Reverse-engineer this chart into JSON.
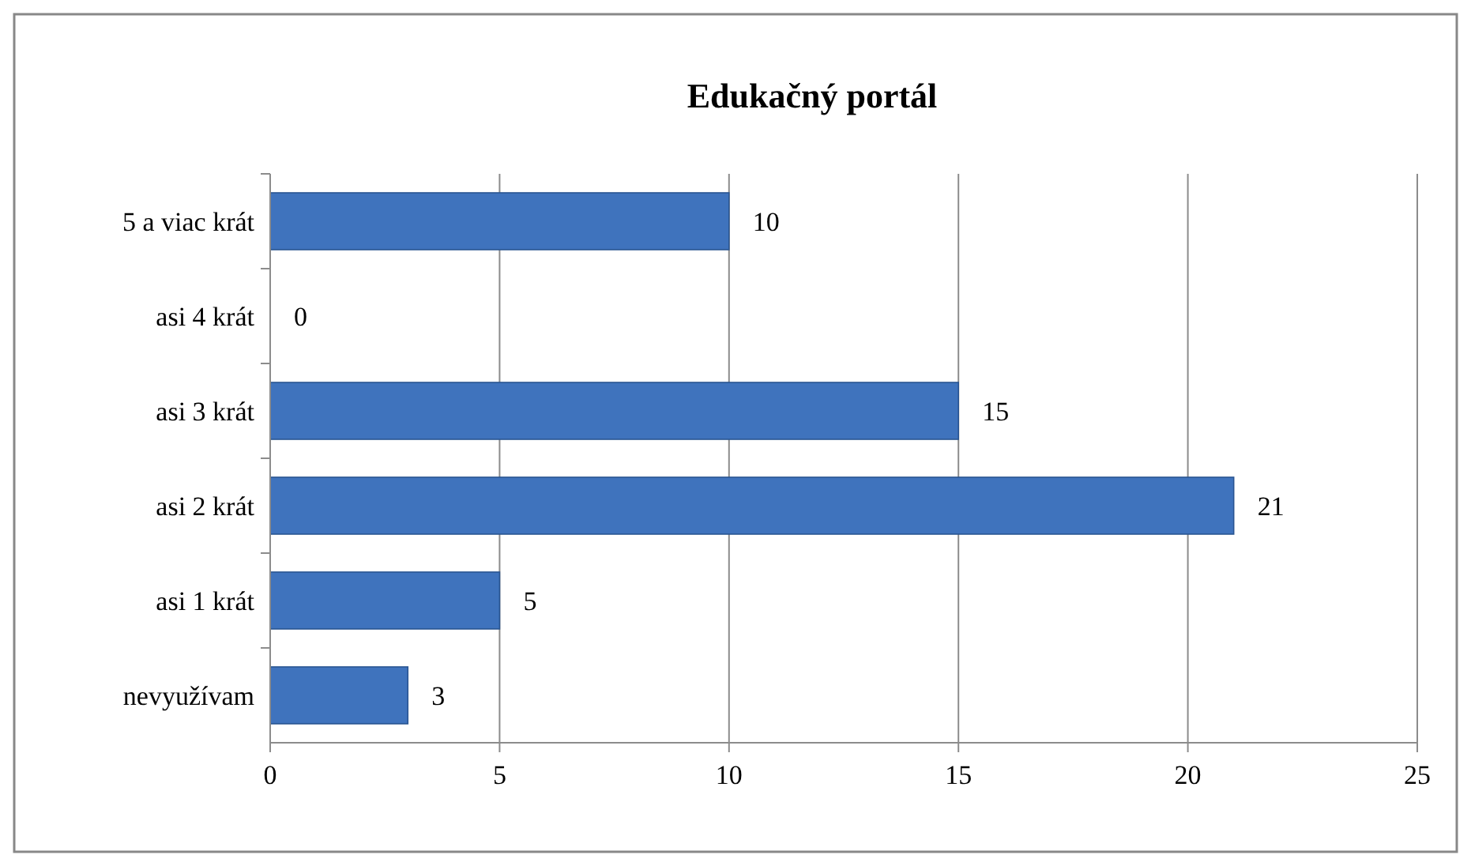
{
  "chart_data": {
    "type": "bar",
    "orientation": "horizontal",
    "title": "Edukačný portál",
    "categories": [
      "5 a viac krát",
      "asi 4 krát",
      "asi 3 krát",
      "asi 2 krát",
      "asi 1 krát",
      "nevyužívam"
    ],
    "values": [
      10,
      0,
      15,
      21,
      5,
      3
    ],
    "color": "#3f73bd",
    "xlim": [
      0,
      25
    ],
    "xticks": [
      0,
      5,
      10,
      15,
      20,
      25
    ],
    "grid": "x",
    "data_labels": true
  }
}
